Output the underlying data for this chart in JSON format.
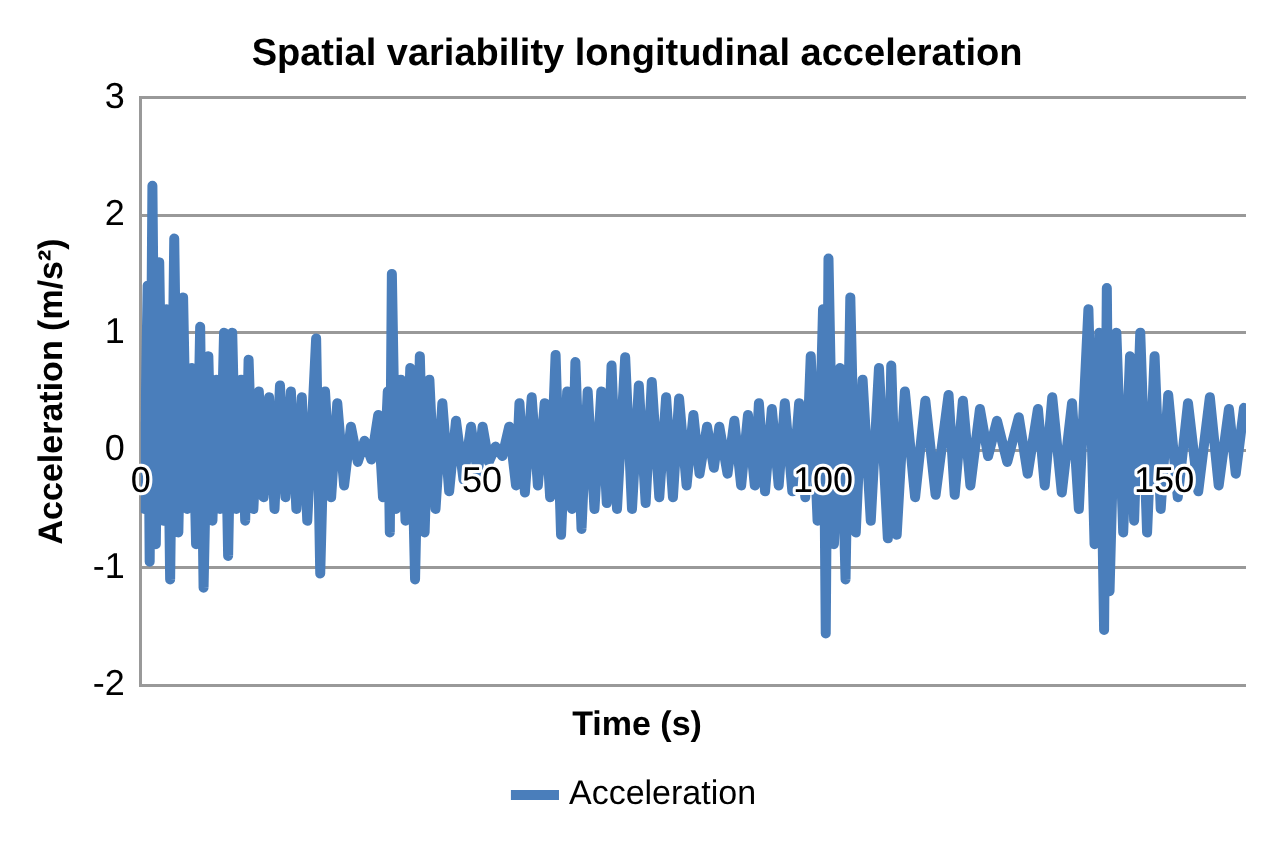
{
  "chart_data": {
    "type": "line",
    "title": "Spatial variability longitudinal acceleration",
    "xlabel": "Time (s)",
    "ylabel": "Acceleration (m/s²)",
    "xlim": [
      0,
      162
    ],
    "xticks": [
      0,
      50,
      100,
      150
    ],
    "ylim": [
      -2,
      3
    ],
    "yticks": [
      -2,
      -1,
      0,
      1,
      2,
      3
    ],
    "grid": "y",
    "legend": "bottom",
    "marker": "none",
    "line_style": "solid",
    "series": [
      {
        "name": "Acceleration",
        "color": "#4a7ebb",
        "x": [
          0,
          0.5,
          1.0,
          1.3,
          1.7,
          2.2,
          2.7,
          3.3,
          3.8,
          4.3,
          4.9,
          5.5,
          6.2,
          6.8,
          7.5,
          8.1,
          8.7,
          9.2,
          9.9,
          10.5,
          11.1,
          11.6,
          12.2,
          12.8,
          13.4,
          14.0,
          14.7,
          15.3,
          15.8,
          16.5,
          17.3,
          18.0,
          18.8,
          19.6,
          20.4,
          21.2,
          22.0,
          22.8,
          23.6,
          24.4,
          25.7,
          26.3,
          27.0,
          27.9,
          28.8,
          29.8,
          30.8,
          31.8,
          32.8,
          33.8,
          34.8,
          35.5,
          36.2,
          36.5,
          36.8,
          37.4,
          38.1,
          38.8,
          39.5,
          40.2,
          40.9,
          41.6,
          42.3,
          43.2,
          44.2,
          45.2,
          46.2,
          47.3,
          48.4,
          49.4,
          50.1,
          51.0,
          52.0,
          53.0,
          54.0,
          55.0,
          55.5,
          56.3,
          57.3,
          58.2,
          59.2,
          60.0,
          60.8,
          61.6,
          62.5,
          63.2,
          63.7,
          64.6,
          65.5,
          66.5,
          67.5,
          68.3,
          69.0,
          69.8,
          71.0,
          72.0,
          73.0,
          74.0,
          74.9,
          76.0,
          77.0,
          78.0,
          78.9,
          80.0,
          81.0,
          81.9,
          83.0,
          84.0,
          84.8,
          86.0,
          87.0,
          88.0,
          89.0,
          90.0,
          90.6,
          91.5,
          92.5,
          93.5,
          94.4,
          95.5,
          96.5,
          97.4,
          98.2,
          99.2,
          100.0,
          100.4,
          100.8,
          101.6,
          102.5,
          103.3,
          104.0,
          104.8,
          105.8,
          107.0,
          108.2,
          109.5,
          110.0,
          110.8,
          112.0,
          113.5,
          115.0,
          116.5,
          118.4,
          119.3,
          120.5,
          121.6,
          123.0,
          124.2,
          125.5,
          127.0,
          128.7,
          130.0,
          131.5,
          132.5,
          133.6,
          135.0,
          136.5,
          137.5,
          138.9,
          139.8,
          140.5,
          141.2,
          141.6,
          142.0,
          143.0,
          144.0,
          145.0,
          145.6,
          146.5,
          147.5,
          148.6,
          149.5,
          150.6,
          152.0,
          153.5,
          155.0,
          156.7,
          158.0,
          159.5,
          160.5,
          161.7
        ],
        "values": [
          0.2,
          -0.5,
          1.4,
          -0.95,
          2.25,
          -0.8,
          1.6,
          -0.6,
          1.2,
          -1.1,
          1.8,
          -0.7,
          1.3,
          -0.5,
          0.7,
          -0.8,
          1.05,
          -1.17,
          0.8,
          -0.6,
          0.6,
          -0.5,
          1.0,
          -0.9,
          1.0,
          -0.5,
          0.6,
          -0.6,
          0.77,
          -0.5,
          0.5,
          -0.4,
          0.45,
          -0.5,
          0.55,
          -0.4,
          0.5,
          -0.5,
          0.45,
          -0.6,
          0.95,
          -1.05,
          0.5,
          -0.4,
          0.4,
          -0.3,
          0.2,
          -0.1,
          0.08,
          -0.08,
          0.3,
          -0.4,
          0.5,
          -0.7,
          1.5,
          -0.5,
          0.6,
          -0.6,
          0.7,
          -1.1,
          0.8,
          -0.7,
          0.6,
          -0.5,
          0.4,
          -0.35,
          0.25,
          -0.25,
          0.2,
          -0.2,
          0.2,
          -0.1,
          0.03,
          -0.05,
          0.2,
          -0.3,
          0.4,
          -0.36,
          0.45,
          -0.3,
          0.4,
          -0.4,
          0.81,
          -0.72,
          0.5,
          -0.5,
          0.75,
          -0.67,
          0.5,
          -0.5,
          0.5,
          -0.45,
          0.72,
          -0.5,
          0.79,
          -0.5,
          0.55,
          -0.45,
          0.58,
          -0.4,
          0.45,
          -0.4,
          0.44,
          -0.3,
          0.3,
          -0.2,
          0.2,
          -0.15,
          0.2,
          -0.2,
          0.25,
          -0.3,
          0.3,
          -0.3,
          0.4,
          -0.35,
          0.35,
          -0.3,
          0.4,
          -0.35,
          0.4,
          -0.4,
          0.8,
          -0.6,
          1.2,
          -1.56,
          1.63,
          -0.8,
          0.7,
          -1.1,
          1.3,
          -0.7,
          0.6,
          -0.6,
          0.7,
          -0.75,
          0.72,
          -0.72,
          0.5,
          -0.4,
          0.42,
          -0.38,
          0.47,
          -0.38,
          0.42,
          -0.3,
          0.35,
          -0.05,
          0.25,
          -0.1,
          0.28,
          -0.2,
          0.35,
          -0.3,
          0.45,
          -0.36,
          0.4,
          -0.5,
          1.2,
          -0.8,
          1.0,
          -1.53,
          1.38,
          -1.2,
          1.0,
          -0.7,
          0.8,
          -0.6,
          1.0,
          -0.7,
          0.8,
          -0.5,
          0.47,
          -0.4,
          0.4,
          -0.35,
          0.45,
          -0.3,
          0.35,
          -0.2,
          0.36
        ]
      }
    ]
  }
}
